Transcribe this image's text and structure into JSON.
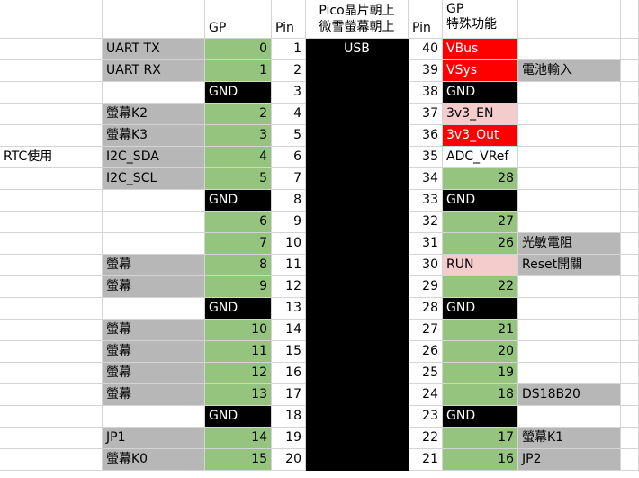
{
  "headers": {
    "gp_left": "GP",
    "pin_left": "Pin",
    "chip_line1": "Pico晶片朝上",
    "chip_line2": "微雪螢幕朝上",
    "pin_right": "Pin",
    "gp_right_line1": "GP",
    "gp_right_line2": "特殊功能"
  },
  "chip": {
    "usb_label": "USB"
  },
  "rows": [
    {
      "note": "",
      "left_func": "UART TX",
      "left_gp": "0",
      "left_pin": "1",
      "right_pin": "40",
      "right_gp": "VBus",
      "right_func": ""
    },
    {
      "note": "",
      "left_func": "UART RX",
      "left_gp": "1",
      "left_pin": "2",
      "right_pin": "39",
      "right_gp": "VSys",
      "right_func": "電池輸入"
    },
    {
      "note": "",
      "left_func": "",
      "left_gp": "GND",
      "left_pin": "3",
      "right_pin": "38",
      "right_gp": "GND",
      "right_func": ""
    },
    {
      "note": "",
      "left_func": "螢幕K2",
      "left_gp": "2",
      "left_pin": "4",
      "right_pin": "37",
      "right_gp": "3v3_EN",
      "right_func": ""
    },
    {
      "note": "",
      "left_func": "螢幕K3",
      "left_gp": "3",
      "left_pin": "5",
      "right_pin": "36",
      "right_gp": "3v3_Out",
      "right_func": ""
    },
    {
      "note": "RTC使用",
      "left_func": "I2C_SDA",
      "left_gp": "4",
      "left_pin": "6",
      "right_pin": "35",
      "right_gp": "ADC_VRef",
      "right_func": ""
    },
    {
      "note": "",
      "left_func": "I2C_SCL",
      "left_gp": "5",
      "left_pin": "7",
      "right_pin": "34",
      "right_gp": "28",
      "right_func": ""
    },
    {
      "note": "",
      "left_func": "",
      "left_gp": "GND",
      "left_pin": "8",
      "right_pin": "33",
      "right_gp": "GND",
      "right_func": ""
    },
    {
      "note": "",
      "left_func": "",
      "left_gp": "6",
      "left_pin": "9",
      "right_pin": "32",
      "right_gp": "27",
      "right_func": ""
    },
    {
      "note": "",
      "left_func": "",
      "left_gp": "7",
      "left_pin": "10",
      "right_pin": "31",
      "right_gp": "26",
      "right_func": "光敏電阻"
    },
    {
      "note": "",
      "left_func": "螢幕",
      "left_gp": "8",
      "left_pin": "11",
      "right_pin": "30",
      "right_gp": "RUN",
      "right_func": "Reset開關"
    },
    {
      "note": "",
      "left_func": "螢幕",
      "left_gp": "9",
      "left_pin": "12",
      "right_pin": "29",
      "right_gp": "22",
      "right_func": ""
    },
    {
      "note": "",
      "left_func": "",
      "left_gp": "GND",
      "left_pin": "13",
      "right_pin": "28",
      "right_gp": "GND",
      "right_func": ""
    },
    {
      "note": "",
      "left_func": "螢幕",
      "left_gp": "10",
      "left_pin": "14",
      "right_pin": "27",
      "right_gp": "21",
      "right_func": ""
    },
    {
      "note": "",
      "left_func": "螢幕",
      "left_gp": "11",
      "left_pin": "15",
      "right_pin": "26",
      "right_gp": "20",
      "right_func": ""
    },
    {
      "note": "",
      "left_func": "螢幕",
      "left_gp": "12",
      "left_pin": "16",
      "right_pin": "25",
      "right_gp": "19",
      "right_func": ""
    },
    {
      "note": "",
      "left_func": "螢幕",
      "left_gp": "13",
      "left_pin": "17",
      "right_pin": "24",
      "right_gp": "18",
      "right_func": "DS18B20"
    },
    {
      "note": "",
      "left_func": "",
      "left_gp": "GND",
      "left_pin": "18",
      "right_pin": "23",
      "right_gp": "GND",
      "right_func": ""
    },
    {
      "note": "",
      "left_func": "JP1",
      "left_gp": "14",
      "left_pin": "19",
      "right_pin": "22",
      "right_gp": "17",
      "right_func": "螢幕K1"
    },
    {
      "note": "",
      "left_func": "螢幕K0",
      "left_gp": "15",
      "left_pin": "20",
      "right_pin": "21",
      "right_gp": "16",
      "right_func": "JP2"
    }
  ],
  "colors": {
    "function_label": "#b7b7b7",
    "gpio": "#94c47d",
    "ground": "#000000",
    "power": "#ff0000",
    "control": "#f4cccc",
    "chip": "#000000"
  }
}
